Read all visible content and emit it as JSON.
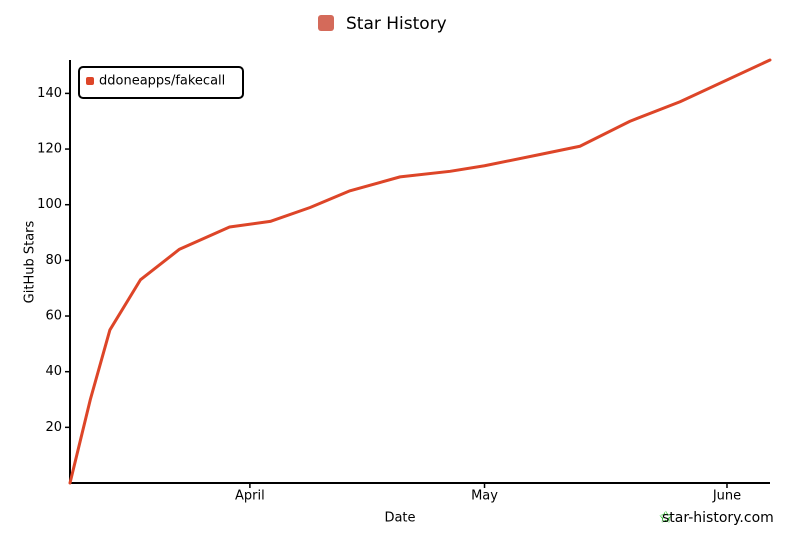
{
  "chart_data": {
    "type": "line",
    "title": "Star History",
    "x_label": "Date",
    "y_label": "GitHub Stars",
    "x": [
      -23,
      -21.7,
      -20.4,
      -17.9,
      -14,
      -9,
      -2.6,
      2.6,
      7.7,
      12.8,
      19.2,
      25.6,
      30,
      37,
      42.2,
      48.6,
      55,
      66.5
    ],
    "series": [
      {
        "name": "ddoneapps/fakecall",
        "color": "#dd4528",
        "values": [
          0,
          15,
          30,
          55,
          73,
          84,
          92,
          94,
          99,
          105,
          110,
          112,
          114,
          118,
          121,
          130,
          137,
          152
        ]
      }
    ],
    "xlim": [
      -23,
      66.5
    ],
    "xticks": [
      {
        "value": 0,
        "label": "April"
      },
      {
        "value": 30,
        "label": "May"
      },
      {
        "value": 61,
        "label": "June"
      }
    ],
    "ylim": [
      0,
      152
    ],
    "yticks": [
      20,
      40,
      60,
      80,
      100,
      120,
      140
    ],
    "legend": "top-left",
    "watermark": "star-history.com"
  }
}
